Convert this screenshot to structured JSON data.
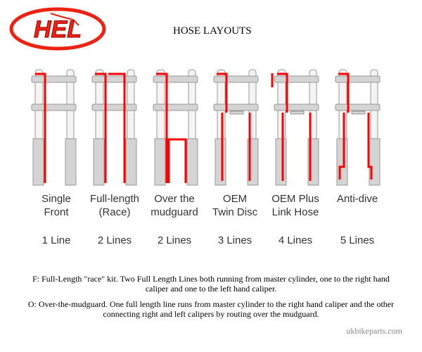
{
  "header": {
    "logo_text": "HEL",
    "title": "HOSE LAYOUTS"
  },
  "colors": {
    "hose": "#ff0000",
    "fork": "#d4d4d4",
    "outline": "#999999"
  },
  "layouts": [
    {
      "label1": "Single",
      "label2": "Front",
      "lines": "1 Line"
    },
    {
      "label1": "Full-length",
      "label2": "(Race)",
      "lines": "2 Lines"
    },
    {
      "label1": "Over the",
      "label2": "mudguard",
      "lines": "2 Lines"
    },
    {
      "label1": "OEM",
      "label2": "Twin Disc",
      "lines": "3 Lines"
    },
    {
      "label1": "OEM Plus",
      "label2": "Link Hose",
      "lines": "4 Lines"
    },
    {
      "label1": "Anti-dive",
      "label2": "",
      "lines": "5 Lines"
    }
  ],
  "notes": {
    "f": "F: Full-Length \"race\" kit. Two Full Length Lines both running from master cylinder, one to the right hand caliper and one to the left hand caliper.",
    "o": "O: Over-the-mudguard. One full length line runs from master cylinder to the right hand caliper and the other connecting right and left calipers by routing over the mudguard."
  },
  "credit": "ukbikeparts.com"
}
